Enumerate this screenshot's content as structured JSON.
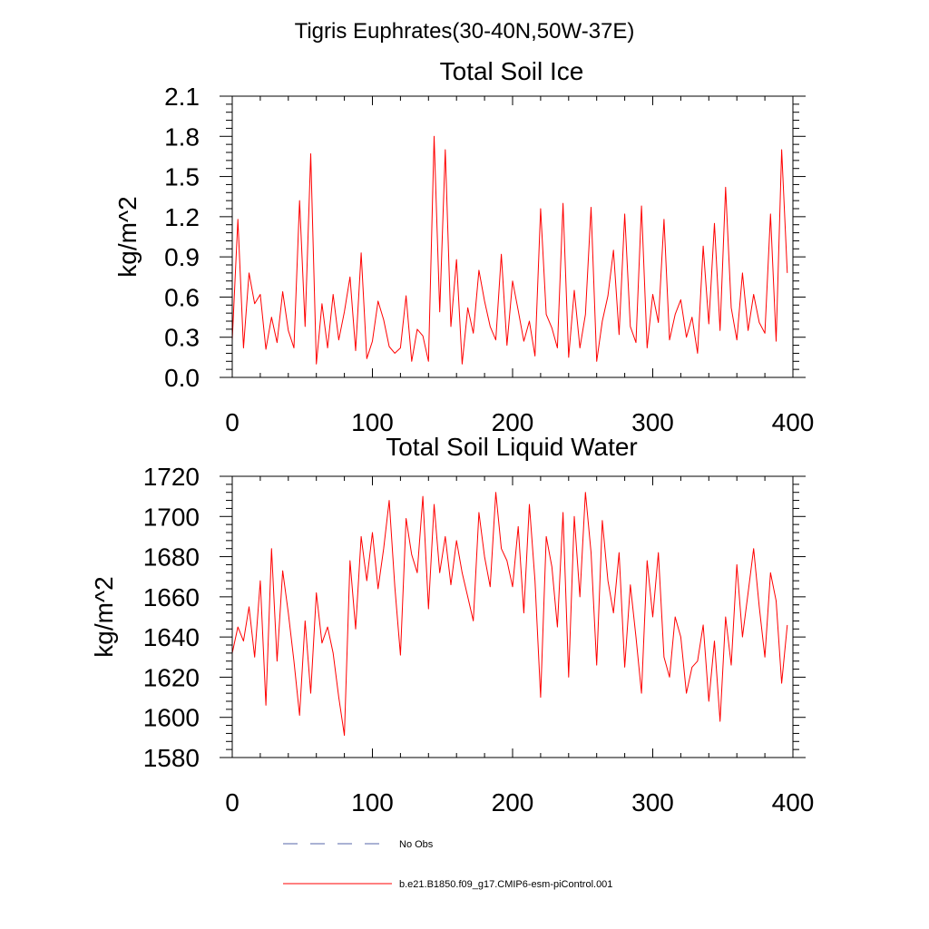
{
  "page_title": "Tigris Euphrates(30-40N,50W-37E)",
  "legend": {
    "items": [
      {
        "label": "No Obs",
        "color": "#5566aa",
        "style": "dashed"
      },
      {
        "label": "b.e21.B1850.f09_g17.CMIP6-esm-piControl.001",
        "color": "#ff0000",
        "style": "solid"
      }
    ]
  },
  "chart_data": [
    {
      "type": "line",
      "title": "Total Soil Ice",
      "xlabel": "",
      "ylabel": "kg/m^2",
      "xlim": [
        0,
        400
      ],
      "ylim": [
        0.0,
        2.1
      ],
      "xticks": [
        0,
        100,
        200,
        300,
        400
      ],
      "xtick_labels": [
        "0",
        "100",
        "200",
        "300",
        "400"
      ],
      "yticks": [
        0.0,
        0.3,
        0.6,
        0.9,
        1.2,
        1.5,
        1.8,
        2.1
      ],
      "ytick_labels": [
        "0.0",
        "0.3",
        "0.6",
        "0.9",
        "1.2",
        "1.5",
        "1.8",
        "2.1"
      ],
      "grid": false,
      "series": [
        {
          "name": "b.e21.B1850.f09_g17.CMIP6-esm-piControl.001",
          "color": "#ff0000",
          "x_start": 0,
          "x_step": 4,
          "values": [
            0.28,
            1.18,
            0.22,
            0.78,
            0.55,
            0.62,
            0.21,
            0.45,
            0.26,
            0.64,
            0.35,
            0.22,
            1.32,
            0.38,
            1.67,
            0.1,
            0.55,
            0.22,
            0.62,
            0.28,
            0.49,
            0.75,
            0.2,
            0.93,
            0.14,
            0.27,
            0.57,
            0.43,
            0.23,
            0.18,
            0.22,
            0.61,
            0.12,
            0.36,
            0.31,
            0.12,
            1.8,
            0.49,
            1.7,
            0.38,
            0.88,
            0.1,
            0.52,
            0.33,
            0.8,
            0.57,
            0.38,
            0.28,
            0.92,
            0.24,
            0.72,
            0.5,
            0.27,
            0.42,
            0.16,
            1.26,
            0.47,
            0.37,
            0.22,
            1.3,
            0.15,
            0.65,
            0.22,
            0.47,
            1.27,
            0.12,
            0.42,
            0.61,
            0.95,
            0.32,
            1.22,
            0.38,
            0.26,
            1.28,
            0.22,
            0.62,
            0.41,
            1.18,
            0.28,
            0.47,
            0.58,
            0.3,
            0.45,
            0.18,
            0.98,
            0.4,
            1.15,
            0.35,
            1.42,
            0.52,
            0.28,
            0.78,
            0.35,
            0.62,
            0.41,
            0.33,
            1.22,
            0.27,
            1.7,
            0.78
          ]
        }
      ]
    },
    {
      "type": "line",
      "title": "Total Soil Liquid Water",
      "xlabel": "",
      "ylabel": "kg/m^2",
      "xlim": [
        0,
        400
      ],
      "ylim": [
        1580,
        1720
      ],
      "xticks": [
        0,
        100,
        200,
        300,
        400
      ],
      "xtick_labels": [
        "0",
        "100",
        "200",
        "300",
        "400"
      ],
      "yticks": [
        1580,
        1600,
        1620,
        1640,
        1660,
        1680,
        1700,
        1720
      ],
      "ytick_labels": [
        "1580",
        "1600",
        "1620",
        "1640",
        "1660",
        "1680",
        "1700",
        "1720"
      ],
      "grid": false,
      "series": [
        {
          "name": "b.e21.B1850.f09_g17.CMIP6-esm-piControl.001",
          "color": "#ff0000",
          "x_start": 0,
          "x_step": 4,
          "values": [
            1632,
            1645,
            1638,
            1655,
            1630,
            1668,
            1606,
            1684,
            1628,
            1673,
            1652,
            1628,
            1601,
            1648,
            1612,
            1662,
            1637,
            1645,
            1632,
            1610,
            1591,
            1678,
            1644,
            1690,
            1668,
            1692,
            1664,
            1684,
            1708,
            1665,
            1631,
            1699,
            1681,
            1672,
            1710,
            1654,
            1706,
            1672,
            1690,
            1666,
            1688,
            1672,
            1660,
            1648,
            1702,
            1680,
            1665,
            1712,
            1684,
            1678,
            1665,
            1695,
            1652,
            1706,
            1668,
            1610,
            1690,
            1675,
            1645,
            1702,
            1620,
            1700,
            1660,
            1712,
            1682,
            1626,
            1698,
            1668,
            1652,
            1682,
            1625,
            1666,
            1640,
            1612,
            1678,
            1650,
            1682,
            1630,
            1620,
            1650,
            1640,
            1612,
            1625,
            1628,
            1646,
            1608,
            1638,
            1598,
            1650,
            1626,
            1676,
            1640,
            1662,
            1684,
            1655,
            1630,
            1672,
            1658,
            1617,
            1646
          ]
        }
      ]
    }
  ]
}
